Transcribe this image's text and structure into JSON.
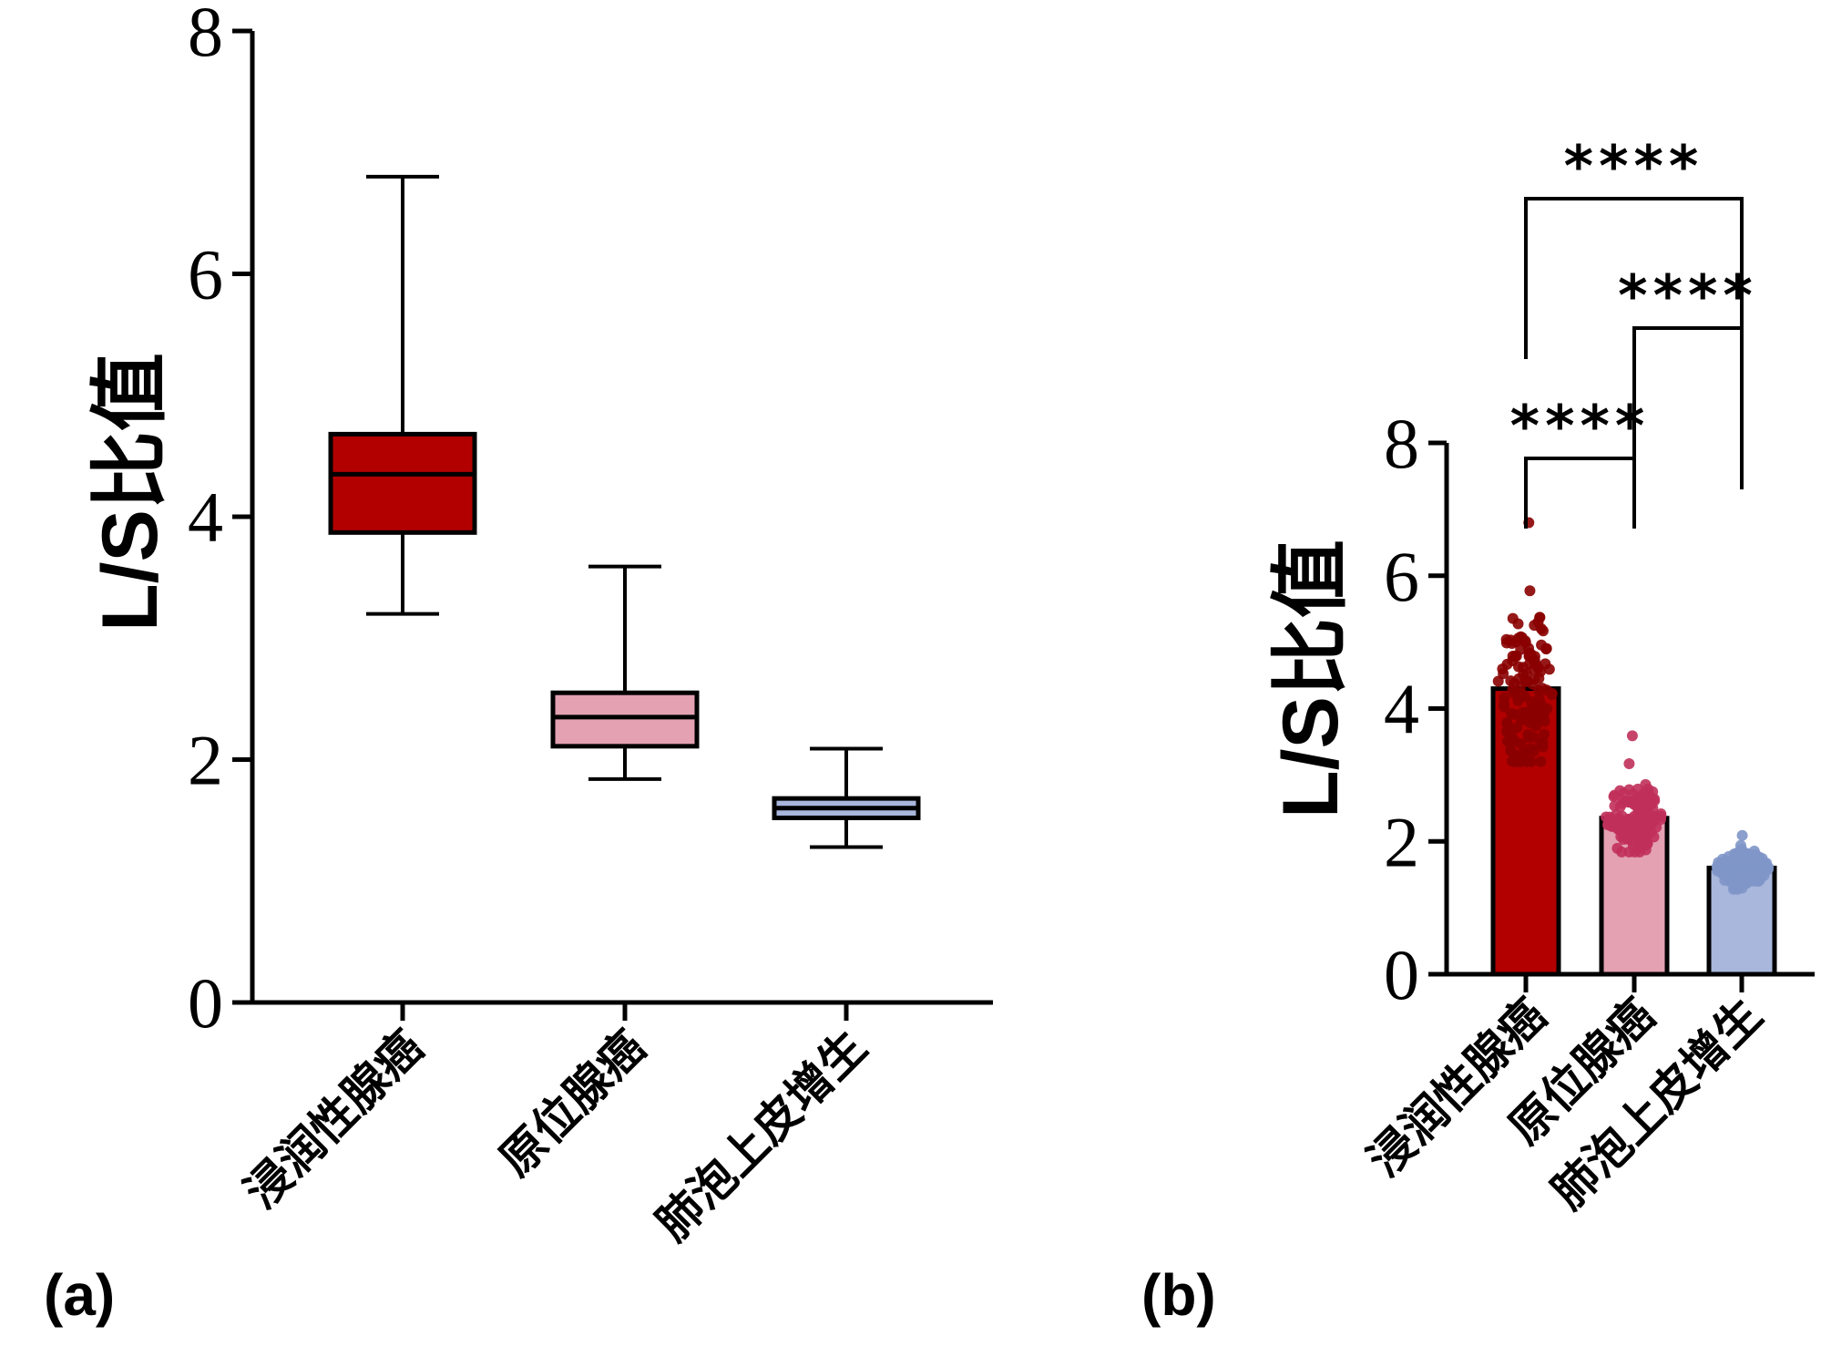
{
  "chart_data": [
    {
      "panel": "(a)",
      "type": "box",
      "ylabel": "L/S比值",
      "ylim": [
        0,
        8
      ],
      "yticks": [
        "0",
        "2",
        "4",
        "6",
        "8"
      ],
      "categories": [
        "浸润性腺癌",
        "原位腺癌",
        "肺泡上皮增生"
      ],
      "boxes": [
        {
          "name": "浸润性腺癌",
          "min": 3.2,
          "q1": 3.87,
          "median": 4.35,
          "q3": 4.68,
          "max": 6.8,
          "color": "#b20000"
        },
        {
          "name": "原位腺癌",
          "min": 1.84,
          "q1": 2.11,
          "median": 2.35,
          "q3": 2.55,
          "max": 3.59,
          "color": "#e3a1b2"
        },
        {
          "name": "肺泡上皮增生",
          "min": 1.28,
          "q1": 1.52,
          "median": 1.6,
          "q3": 1.68,
          "max": 2.09,
          "color": "#a9b7dc"
        }
      ]
    },
    {
      "panel": "(b)",
      "type": "bar",
      "ylabel": "L/S比值",
      "ylim": [
        0,
        8
      ],
      "yticks": [
        "0",
        "2",
        "4",
        "6",
        "8"
      ],
      "categories": [
        "浸润性腺癌",
        "原位腺癌",
        "肺泡上皮增生"
      ],
      "values": [
        4.3,
        2.35,
        1.6
      ],
      "bar_colors": [
        "#b20000",
        "#e3a1b2",
        "#a9b7dc"
      ],
      "point_colors": [
        "#8a0000",
        "#c0305a",
        "#7f96c8"
      ],
      "point_ranges": [
        [
          3.2,
          6.8
        ],
        [
          1.84,
          3.59
        ],
        [
          1.28,
          2.09
        ]
      ],
      "significance": [
        {
          "from": 0,
          "to": 2,
          "label": "****"
        },
        {
          "from": 1,
          "to": 2,
          "label": "****"
        },
        {
          "from": 0,
          "to": 1,
          "label": "****"
        }
      ]
    }
  ]
}
